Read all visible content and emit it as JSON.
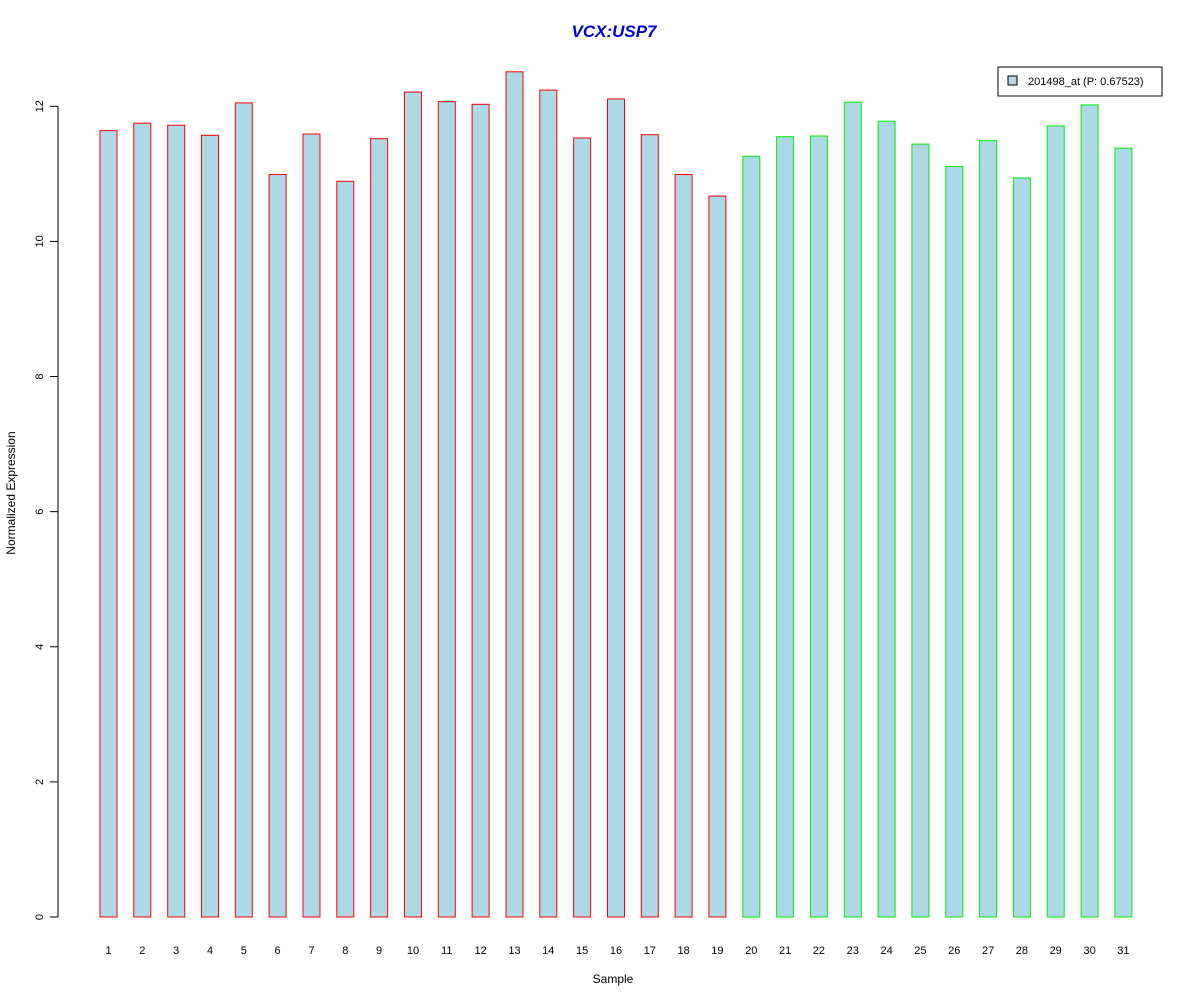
{
  "chart_data": {
    "type": "bar",
    "title": "VCX:USP7",
    "xlabel": "Sample",
    "ylabel": "Normalized Expression",
    "ylim": [
      0,
      12.7
    ],
    "yticks": [
      0,
      2,
      4,
      6,
      8,
      10,
      12
    ],
    "categories": [
      "1",
      "2",
      "3",
      "4",
      "5",
      "6",
      "7",
      "8",
      "9",
      "10",
      "11",
      "12",
      "13",
      "14",
      "15",
      "16",
      "17",
      "18",
      "19",
      "20",
      "21",
      "22",
      "23",
      "24",
      "25",
      "26",
      "27",
      "28",
      "29",
      "30",
      "31"
    ],
    "series": [
      {
        "name": "201498_at (P: 0.67523)",
        "values": [
          11.64,
          11.75,
          11.72,
          11.57,
          12.05,
          10.99,
          11.59,
          10.89,
          11.52,
          12.21,
          12.07,
          12.03,
          12.51,
          12.24,
          11.53,
          12.11,
          11.58,
          10.99,
          10.67,
          11.26,
          11.55,
          11.56,
          12.06,
          11.78,
          11.44,
          11.11,
          11.49,
          10.94,
          11.71,
          12.02,
          11.38
        ]
      }
    ],
    "group_border_colors": [
      "#ff0000",
      "#ff0000",
      "#ff0000",
      "#ff0000",
      "#ff0000",
      "#ff0000",
      "#ff0000",
      "#ff0000",
      "#ff0000",
      "#ff0000",
      "#ff0000",
      "#ff0000",
      "#ff0000",
      "#ff0000",
      "#ff0000",
      "#ff0000",
      "#ff0000",
      "#ff0000",
      "#ff0000",
      "#00ee00",
      "#00ee00",
      "#00ee00",
      "#00ee00",
      "#00ee00",
      "#00ee00",
      "#00ee00",
      "#00ee00",
      "#00ee00",
      "#00ee00",
      "#00ee00",
      "#00ee00"
    ],
    "bar_fill": "#add8e6",
    "title_color": "#0000cd",
    "grid": false,
    "legend_position": "top-right"
  }
}
